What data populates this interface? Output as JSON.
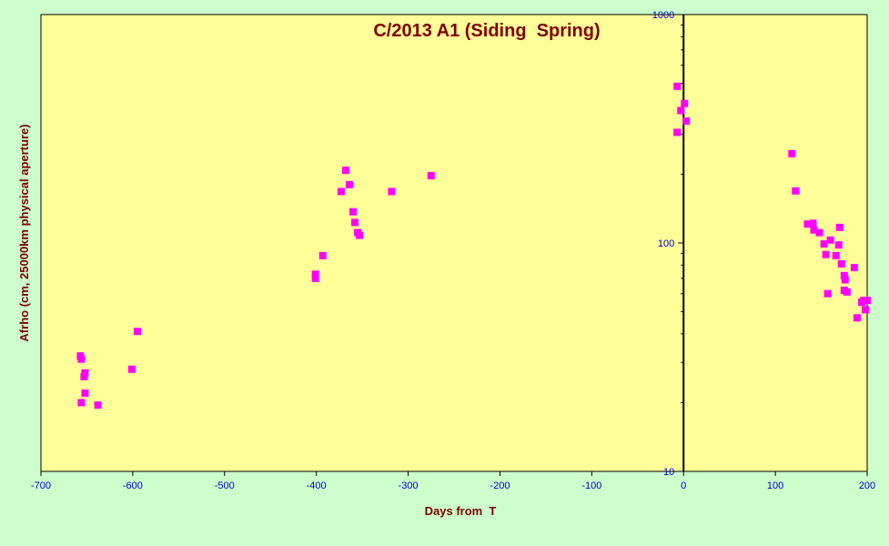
{
  "chart_data": {
    "type": "scatter",
    "title": "C/2013 A1 (Siding  Spring)",
    "xlabel": "Days from  T",
    "ylabel": "Afrho (cm, 25000km physical aperture)",
    "xlim": [
      -700,
      200
    ],
    "ylim": [
      10,
      1000
    ],
    "y_scale": "log",
    "x_ticks": [
      -700,
      -600,
      -500,
      -400,
      -300,
      -200,
      -100,
      0,
      100,
      200
    ],
    "y_ticks": [
      10,
      100,
      1000
    ],
    "y_tick_labels": [
      "10",
      "100",
      "1000"
    ],
    "grid": false,
    "legend": "none",
    "colors": {
      "plot_background": "#ffff99",
      "page_background": "#ccffcc",
      "marker": "#ff00ff",
      "title": "#800000",
      "tick_labels": "#0000cc"
    },
    "points": [
      {
        "x": -657,
        "y": 32
      },
      {
        "x": -656,
        "y": 31
      },
      {
        "x": -652,
        "y": 27
      },
      {
        "x": -653,
        "y": 26
      },
      {
        "x": -652,
        "y": 22
      },
      {
        "x": -656,
        "y": 20
      },
      {
        "x": -638,
        "y": 19.5
      },
      {
        "x": -601,
        "y": 28
      },
      {
        "x": -595,
        "y": 41
      },
      {
        "x": -401,
        "y": 73
      },
      {
        "x": -401,
        "y": 70
      },
      {
        "x": -393,
        "y": 88
      },
      {
        "x": -373,
        "y": 168
      },
      {
        "x": -368,
        "y": 208
      },
      {
        "x": -364,
        "y": 180
      },
      {
        "x": -360,
        "y": 137
      },
      {
        "x": -358,
        "y": 123
      },
      {
        "x": -355,
        "y": 111
      },
      {
        "x": -353,
        "y": 108
      },
      {
        "x": -318,
        "y": 168
      },
      {
        "x": -275,
        "y": 197
      },
      {
        "x": -7,
        "y": 485
      },
      {
        "x": -7,
        "y": 305
      },
      {
        "x": -3,
        "y": 380
      },
      {
        "x": 1,
        "y": 408
      },
      {
        "x": 3,
        "y": 342
      },
      {
        "x": 118,
        "y": 246
      },
      {
        "x": 122,
        "y": 169
      },
      {
        "x": 135,
        "y": 121
      },
      {
        "x": 141,
        "y": 122
      },
      {
        "x": 142,
        "y": 114
      },
      {
        "x": 148,
        "y": 111
      },
      {
        "x": 153,
        "y": 99
      },
      {
        "x": 155,
        "y": 89
      },
      {
        "x": 157,
        "y": 60
      },
      {
        "x": 160,
        "y": 103
      },
      {
        "x": 166,
        "y": 88
      },
      {
        "x": 169,
        "y": 98
      },
      {
        "x": 170,
        "y": 117
      },
      {
        "x": 172,
        "y": 81
      },
      {
        "x": 175,
        "y": 72
      },
      {
        "x": 176,
        "y": 69
      },
      {
        "x": 175,
        "y": 62
      },
      {
        "x": 178,
        "y": 61
      },
      {
        "x": 186,
        "y": 78
      },
      {
        "x": 189,
        "y": 47
      },
      {
        "x": 194,
        "y": 55
      },
      {
        "x": 196,
        "y": 56
      },
      {
        "x": 198,
        "y": 51
      },
      {
        "x": 200,
        "y": 56
      }
    ]
  }
}
